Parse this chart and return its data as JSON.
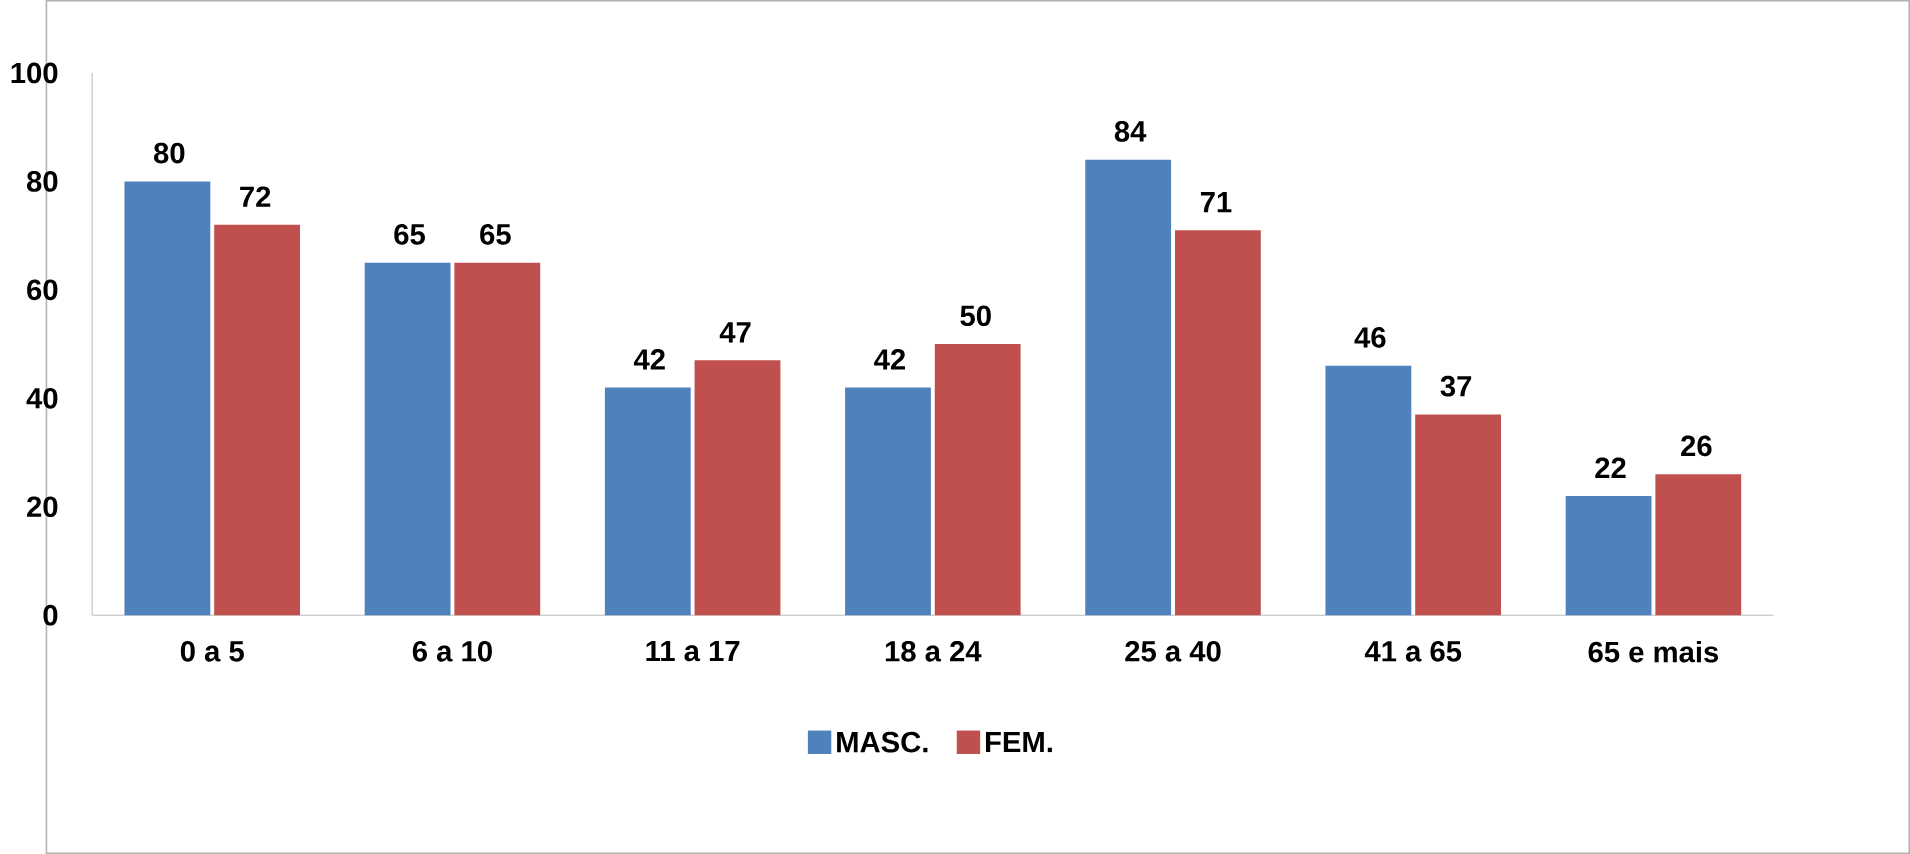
{
  "chart_data": {
    "type": "bar",
    "categories": [
      "0 a 5",
      "6 a 10",
      "11 a 17",
      "18 a 24",
      "25 a 40",
      "41 a 65",
      "65 e mais"
    ],
    "series": [
      {
        "name": "MASC.",
        "color": "#4f81bd",
        "values": [
          80,
          65,
          42,
          42,
          84,
          46,
          22
        ]
      },
      {
        "name": "FEM.",
        "color": "#c0504d",
        "values": [
          72,
          65,
          47,
          50,
          71,
          37,
          26
        ]
      }
    ],
    "ylim": [
      0,
      100
    ],
    "yticks": [
      0,
      20,
      40,
      60,
      80,
      100
    ],
    "data_labels": true,
    "legend": "bottom",
    "grid": false
  }
}
